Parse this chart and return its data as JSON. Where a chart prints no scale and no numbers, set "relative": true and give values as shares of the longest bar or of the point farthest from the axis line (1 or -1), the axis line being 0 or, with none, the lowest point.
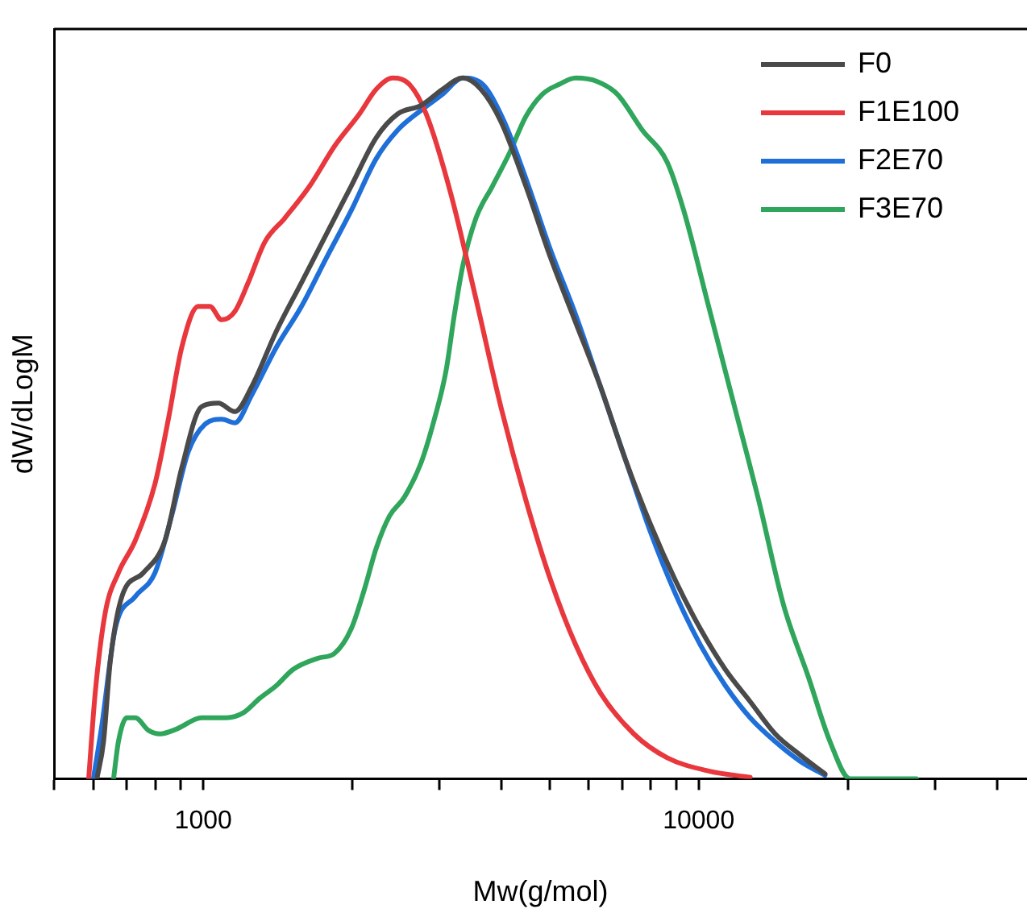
{
  "chart_data": {
    "type": "line",
    "xlabel": "Mw(g/mol)",
    "ylabel": "dW/dLogM",
    "relative": true,
    "log": "x",
    "xlim": [
      500,
      46000
    ],
    "xticks": [
      {
        "value": 500,
        "label": null
      },
      {
        "value": 600,
        "label": null
      },
      {
        "value": 700,
        "label": null
      },
      {
        "value": 800,
        "label": null
      },
      {
        "value": 900,
        "label": null
      },
      1000,
      {
        "value": 2000,
        "label": null
      },
      {
        "value": 3000,
        "label": null
      },
      {
        "value": 4000,
        "label": null
      },
      {
        "value": 5000,
        "label": null
      },
      {
        "value": 6000,
        "label": null
      },
      {
        "value": 7000,
        "label": null
      },
      {
        "value": 8000,
        "label": null
      },
      {
        "value": 9000,
        "label": null
      },
      10000,
      {
        "value": 20000,
        "label": null
      },
      {
        "value": 30000,
        "label": null
      },
      {
        "value": 40000,
        "label": null
      }
    ],
    "grid": false,
    "legend": "top right",
    "tick_labels": "x",
    "marker": "none",
    "line_style": "solid",
    "series": [
      {
        "name": "F0",
        "color": "#4a4a4a",
        "x": [
          610,
          629,
          649,
          685,
          757,
          837,
          905,
          992,
          1072,
          1158,
          1251,
          1405,
          1578,
          1771,
          1989,
          2234,
          2470,
          2752,
          3042,
          3338,
          3634,
          3987,
          4477,
          5027,
          5646,
          6339,
          7118,
          7993,
          8974,
          10078,
          11316,
          12706,
          14270,
          16023,
          17989
        ],
        "values": [
          0,
          0.053,
          0.168,
          0.26,
          0.294,
          0.34,
          0.444,
          0.531,
          0.536,
          0.524,
          0.559,
          0.639,
          0.708,
          0.777,
          0.846,
          0.915,
          0.949,
          0.961,
          0.984,
          1,
          0.984,
          0.938,
          0.846,
          0.743,
          0.651,
          0.559,
          0.455,
          0.363,
          0.283,
          0.214,
          0.156,
          0.11,
          0.064,
          0.034,
          0.007
        ]
      },
      {
        "name": "F1E100",
        "color": "#e8383d",
        "x": [
          587,
          605,
          634,
          674,
          729,
          799,
          850,
          905,
          977,
          1031,
          1089,
          1158,
          1232,
          1331,
          1460,
          1640,
          1841,
          2067,
          2234,
          2413,
          2607,
          2817,
          3162,
          3551,
          3987,
          4477,
          5027,
          5646,
          6339,
          7398,
          8637,
          10474,
          12706
        ],
        "values": [
          0,
          0.122,
          0.237,
          0.294,
          0.34,
          0.421,
          0.513,
          0.616,
          0.674,
          0.674,
          0.655,
          0.667,
          0.708,
          0.766,
          0.8,
          0.846,
          0.903,
          0.949,
          0.984,
          1,
          0.991,
          0.949,
          0.834,
          0.685,
          0.531,
          0.398,
          0.283,
          0.191,
          0.122,
          0.064,
          0.03,
          0.011,
          0.002
        ]
      },
      {
        "name": "F2E70",
        "color": "#1f6fd9",
        "x": [
          600,
          624,
          664,
          729,
          799,
          863,
          933,
          1008,
          1089,
          1158,
          1251,
          1405,
          1578,
          1771,
          1989,
          2234,
          2470,
          2752,
          3042,
          3338,
          3691,
          4049,
          4477,
          5027,
          5646,
          6339,
          7118,
          7993,
          8974,
          10078,
          11316,
          12706,
          14270,
          16023,
          17989
        ],
        "values": [
          0,
          0.076,
          0.214,
          0.26,
          0.294,
          0.375,
          0.467,
          0.506,
          0.513,
          0.508,
          0.547,
          0.616,
          0.674,
          0.743,
          0.811,
          0.885,
          0.926,
          0.954,
          0.977,
          1,
          0.989,
          0.938,
          0.857,
          0.754,
          0.662,
          0.559,
          0.455,
          0.352,
          0.264,
          0.191,
          0.133,
          0.087,
          0.053,
          0.025,
          0.005
        ]
      },
      {
        "name": "F3E70",
        "color": "#2fa65c",
        "x": [
          659,
          674,
          701,
          729,
          775,
          818,
          884,
          992,
          1114,
          1204,
          1301,
          1405,
          1518,
          1704,
          1841,
          1989,
          2116,
          2234,
          2376,
          2547,
          2752,
          2927,
          3090,
          3212,
          3338,
          3551,
          3836,
          4144,
          4477,
          4837,
          5225,
          5646,
          6243,
          6849,
          7690,
          8637,
          9328,
          10474,
          11763,
          13210,
          14834,
          16655,
          18412,
          20208,
          27522
        ],
        "values": [
          0,
          0.053,
          0.087,
          0.087,
          0.069,
          0.064,
          0.071,
          0.087,
          0.087,
          0.094,
          0.115,
          0.133,
          0.156,
          0.172,
          0.179,
          0.214,
          0.271,
          0.329,
          0.375,
          0.402,
          0.451,
          0.513,
          0.582,
          0.662,
          0.731,
          0.8,
          0.846,
          0.892,
          0.945,
          0.977,
          0.991,
          1,
          0.995,
          0.977,
          0.926,
          0.88,
          0.811,
          0.674,
          0.536,
          0.398,
          0.248,
          0.145,
          0.053,
          0,
          0
        ]
      }
    ]
  }
}
